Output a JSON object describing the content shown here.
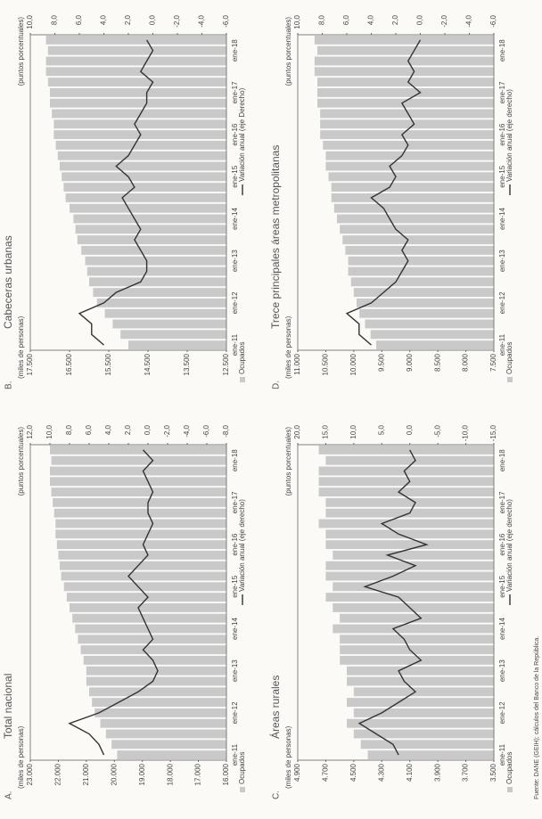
{
  "chart_data": [
    {
      "type": "bar",
      "panel": "A.",
      "title": "Total nacional",
      "ylabel": "(miles de personas)",
      "y2label": "(puntos porcentuales)",
      "categories": [
        "ene-11",
        null,
        null,
        null,
        "ene-12",
        null,
        null,
        null,
        "ene-13",
        null,
        null,
        null,
        "ene-14",
        null,
        null,
        null,
        "ene-15",
        null,
        null,
        null,
        "ene-16",
        null,
        null,
        null,
        "ene-17",
        null,
        null,
        null,
        "ene-18",
        null
      ],
      "series": [
        {
          "name": "Ocupados",
          "type": "bar",
          "color": "#c9c9c9",
          "values": [
            19900,
            20100,
            20300,
            20500,
            20700,
            20800,
            20900,
            21000,
            21000,
            21100,
            21200,
            21300,
            21400,
            21500,
            21600,
            21700,
            21800,
            21900,
            21950,
            22000,
            22050,
            22100,
            22100,
            22150,
            22200,
            22250,
            22300,
            22300,
            22250,
            22300
          ]
        },
        {
          "name": "Variación anual (eje derecho)",
          "type": "line",
          "axis": "y2",
          "color": "#333333",
          "values": [
            4.5,
            5,
            6,
            8,
            5,
            3,
            1,
            -0.5,
            -1,
            -0.5,
            0.5,
            -0.5,
            0,
            0.5,
            1,
            0,
            1,
            2,
            1,
            0,
            0.5,
            0,
            -0.5,
            0,
            0,
            -0.5,
            0,
            0.5,
            -0.5,
            0.5
          ]
        }
      ],
      "ylim": [
        16000,
        23000
      ],
      "yticks": [
        {
          "value": 16000,
          "label": "16.000"
        },
        {
          "value": 17000,
          "label": "17.000"
        },
        {
          "value": 18000,
          "label": "18.000"
        },
        {
          "value": 19000,
          "label": "19.000"
        },
        {
          "value": 20000,
          "label": "20.000"
        },
        {
          "value": 21000,
          "label": "21.000"
        },
        {
          "value": 22000,
          "label": "22.000"
        },
        {
          "value": 23000,
          "label": "23.000"
        }
      ],
      "y2lim": [
        -8,
        12
      ],
      "y2ticks": [
        {
          "value": -8,
          "label": "-8,0"
        },
        {
          "value": -6,
          "label": "-6,0"
        },
        {
          "value": -4,
          "label": "-4,0"
        },
        {
          "value": -2,
          "label": "-2,0"
        },
        {
          "value": 0,
          "label": "0,0"
        },
        {
          "value": 2,
          "label": "2,0"
        },
        {
          "value": 4,
          "label": "4,0"
        },
        {
          "value": 6,
          "label": "6,0"
        },
        {
          "value": 8,
          "label": "8,0"
        },
        {
          "value": 10,
          "label": "10,0"
        },
        {
          "value": 12,
          "label": "12,0"
        }
      ]
    },
    {
      "type": "bar",
      "panel": "B.",
      "title": "Cabeceras urbanas",
      "ylabel": "(miles de personas)",
      "y2label": "(puntos porcentuales)",
      "categories": [
        "ene-11",
        null,
        null,
        null,
        "ene-12",
        null,
        null,
        null,
        "ene-13",
        null,
        null,
        null,
        "ene-14",
        null,
        null,
        null,
        "ene-15",
        null,
        null,
        null,
        "ene-16",
        null,
        null,
        null,
        "ene-17",
        null,
        null,
        null,
        "ene-18",
        null
      ],
      "series": [
        {
          "name": "Ocupados",
          "type": "bar",
          "color": "#c9c9c9",
          "values": [
            15000,
            15200,
            15400,
            15600,
            15800,
            15900,
            16000,
            16050,
            16100,
            16200,
            16300,
            16350,
            16400,
            16500,
            16600,
            16650,
            16700,
            16750,
            16800,
            16850,
            16900,
            16900,
            16950,
            17000,
            17000,
            17050,
            17100,
            17100,
            17050,
            17100
          ]
        },
        {
          "name": "Variación anual (eje Derecho)",
          "type": "line",
          "axis": "y2",
          "color": "#333333",
          "values": [
            4,
            5,
            5,
            6,
            4,
            3,
            1,
            0.5,
            0.5,
            1,
            1.5,
            1,
            1.5,
            2,
            2.5,
            1.5,
            2,
            3,
            2,
            1.5,
            1,
            1.5,
            1,
            0.5,
            0.5,
            0,
            1,
            0.5,
            0,
            0.5
          ]
        }
      ],
      "ylim": [
        12500,
        17500
      ],
      "yticks": [
        {
          "value": 12500,
          "label": "12.500"
        },
        {
          "value": 13500,
          "label": "13.500"
        },
        {
          "value": 14500,
          "label": "14.500"
        },
        {
          "value": 15500,
          "label": "15.500"
        },
        {
          "value": 16500,
          "label": "16.500"
        },
        {
          "value": 17500,
          "label": "17.500"
        }
      ],
      "y2lim": [
        -6,
        10
      ],
      "y2ticks": [
        {
          "value": -6,
          "label": "-6,0"
        },
        {
          "value": -4,
          "label": "-4,0"
        },
        {
          "value": -2,
          "label": "-2,0"
        },
        {
          "value": 0,
          "label": "0,0"
        },
        {
          "value": 2,
          "label": "2,0"
        },
        {
          "value": 4,
          "label": "4,0"
        },
        {
          "value": 6,
          "label": "6,0"
        },
        {
          "value": 8,
          "label": "8,0"
        },
        {
          "value": 10,
          "label": "10,0"
        }
      ]
    },
    {
      "type": "bar",
      "panel": "C.",
      "title": "Áreas rurales",
      "ylabel": "(miles de personas)",
      "y2label": "(puntos porcentuales)",
      "categories": [
        "ene-11",
        null,
        null,
        null,
        "ene-12",
        null,
        null,
        null,
        "ene-13",
        null,
        null,
        null,
        "ene-14",
        null,
        null,
        null,
        "ene-15",
        null,
        null,
        null,
        "ene-16",
        null,
        null,
        null,
        "ene-17",
        null,
        null,
        null,
        "ene-18",
        null
      ],
      "series": [
        {
          "name": "Ocupados",
          "type": "bar",
          "color": "#c9c9c9",
          "values": [
            4400,
            4450,
            4500,
            4550,
            4500,
            4550,
            4500,
            4550,
            4550,
            4600,
            4600,
            4600,
            4650,
            4600,
            4650,
            4700,
            4650,
            4700,
            4700,
            4650,
            4700,
            4700,
            4750,
            4700,
            4700,
            4750,
            4750,
            4750,
            4700,
            4750
          ]
        },
        {
          "name": "Variación anual (eje derecho)",
          "type": "line",
          "axis": "y2",
          "color": "#333333",
          "values": [
            2,
            3,
            6,
            9,
            5,
            2,
            -1,
            1,
            2,
            -2,
            0,
            1,
            3,
            -2,
            0,
            2,
            8,
            3,
            -1,
            4,
            -3,
            2,
            5,
            0,
            -1,
            2,
            0,
            1,
            -1,
            0
          ]
        }
      ],
      "ylim": [
        3500,
        4900
      ],
      "yticks": [
        {
          "value": 3500,
          "label": "3.500"
        },
        {
          "value": 3700,
          "label": "3.700"
        },
        {
          "value": 3900,
          "label": "3.900"
        },
        {
          "value": 4100,
          "label": "4.100"
        },
        {
          "value": 4300,
          "label": "4.300"
        },
        {
          "value": 4500,
          "label": "4.500"
        },
        {
          "value": 4700,
          "label": "4.700"
        },
        {
          "value": 4900,
          "label": "4.900"
        }
      ],
      "y2lim": [
        -15,
        20
      ],
      "y2ticks": [
        {
          "value": -15,
          "label": "-15,0"
        },
        {
          "value": -10,
          "label": "-10,0"
        },
        {
          "value": -5,
          "label": "-5,0"
        },
        {
          "value": 0,
          "label": "0,0"
        },
        {
          "value": 5,
          "label": "5,0"
        },
        {
          "value": 10,
          "label": "10,0"
        },
        {
          "value": 15,
          "label": "15,0"
        },
        {
          "value": 20,
          "label": "20,0"
        }
      ]
    },
    {
      "type": "bar",
      "panel": "D.",
      "title": "Trece principales áreas metropolitanas",
      "ylabel": "(miles de personas)",
      "y2label": "(puntos porcentuales)",
      "categories": [
        "ene-11",
        null,
        null,
        null,
        "ene-12",
        null,
        null,
        null,
        "ene-13",
        null,
        null,
        null,
        "ene-14",
        null,
        null,
        null,
        "ene-15",
        null,
        null,
        null,
        "ene-16",
        null,
        null,
        null,
        "ene-17",
        null,
        null,
        null,
        "ene-18",
        null
      ],
      "series": [
        {
          "name": "Ocupados",
          "type": "bar",
          "color": "#c9c9c9",
          "values": [
            9600,
            9700,
            9800,
            9900,
            9950,
            10000,
            10050,
            10100,
            10100,
            10150,
            10200,
            10250,
            10300,
            10350,
            10400,
            10400,
            10450,
            10500,
            10500,
            10550,
            10600,
            10600,
            10600,
            10650,
            10650,
            10650,
            10700,
            10700,
            10650,
            10700
          ]
        },
        {
          "name": "Variación anual (eje derecho)",
          "type": "line",
          "axis": "y2",
          "color": "#333333",
          "values": [
            4,
            5,
            5,
            6,
            4,
            3,
            2,
            1.5,
            1,
            1.5,
            1,
            2,
            2.5,
            3,
            4,
            2.5,
            2,
            2.5,
            1.5,
            1,
            1.5,
            0.5,
            1,
            1.5,
            0,
            1,
            0.5,
            1,
            0.5,
            0
          ]
        }
      ],
      "ylim": [
        7500,
        11000
      ],
      "yticks": [
        {
          "value": 7500,
          "label": "7.500"
        },
        {
          "value": 8000,
          "label": "8.000"
        },
        {
          "value": 8500,
          "label": "8.500"
        },
        {
          "value": 9000,
          "label": "9.000"
        },
        {
          "value": 9500,
          "label": "9.500"
        },
        {
          "value": 10000,
          "label": "10.000"
        },
        {
          "value": 10500,
          "label": "10.500"
        },
        {
          "value": 11000,
          "label": "11.000"
        }
      ],
      "y2lim": [
        -6,
        10
      ],
      "y2ticks": [
        {
          "value": -6,
          "label": "-6,0"
        },
        {
          "value": -4,
          "label": "-4,0"
        },
        {
          "value": -2,
          "label": "-2,0"
        },
        {
          "value": 0,
          "label": "0,0"
        },
        {
          "value": 2,
          "label": "2,0"
        },
        {
          "value": 4,
          "label": "4,0"
        },
        {
          "value": 6,
          "label": "6,0"
        },
        {
          "value": 8,
          "label": "8,0"
        },
        {
          "value": 10,
          "label": "10,0"
        }
      ]
    }
  ],
  "source": "Fuente: DANE (GEIH); cálculos del Banco de la República."
}
